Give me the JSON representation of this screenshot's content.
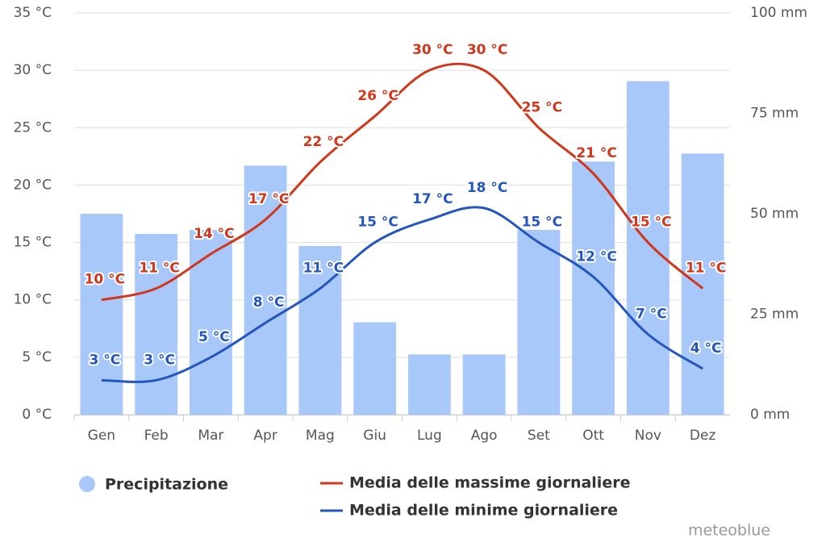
{
  "chart_data": {
    "type": "combo",
    "categories": [
      "Gen",
      "Feb",
      "Mar",
      "Apr",
      "Mag",
      "Giu",
      "Lug",
      "Ago",
      "Set",
      "Ott",
      "Nov",
      "Dez"
    ],
    "series": [
      {
        "name": "Precipitazione",
        "type": "bar",
        "axis": "y2",
        "color": "#a9c8fa",
        "values": [
          50,
          45,
          46,
          62,
          42,
          23,
          15,
          15,
          46,
          63,
          83,
          65
        ]
      },
      {
        "name": "Media delle massime giornaliere",
        "type": "line",
        "color": "#d0361a",
        "values": [
          10,
          11,
          14,
          17,
          22,
          26,
          30,
          30,
          25,
          21,
          15,
          11
        ],
        "value_labels": [
          "10 °C",
          "11 °C",
          "14 °C",
          "17 °C",
          "22 °C",
          "26 °C",
          "30 °C",
          "30 °C",
          "25 °C",
          "21 °C",
          "15 °C",
          "11 °C"
        ]
      },
      {
        "name": "Media delle minime giornaliere",
        "type": "line",
        "color": "#2456bf",
        "values": [
          3,
          3,
          5,
          8,
          11,
          15,
          17,
          18,
          15,
          12,
          7,
          4
        ],
        "value_labels": [
          "3 °C",
          "3 °C",
          "5 °C",
          "8 °C",
          "11 °C",
          "15 °C",
          "17 °C",
          "18 °C",
          "15 °C",
          "12 °C",
          "7 °C",
          "4 °C"
        ]
      }
    ],
    "ylim": [
      0,
      35
    ],
    "yticks": [
      {
        "value": 0,
        "label": "0 °C"
      },
      {
        "value": 5,
        "label": "5 °C"
      },
      {
        "value": 10,
        "label": "10 °C"
      },
      {
        "value": 15,
        "label": "15 °C"
      },
      {
        "value": 20,
        "label": "20 °C"
      },
      {
        "value": 25,
        "label": "25 °C"
      },
      {
        "value": 30,
        "label": "30 °C"
      },
      {
        "value": 35,
        "label": "35 °C"
      }
    ],
    "y2lim": [
      0,
      100
    ],
    "y2ticks": [
      {
        "value": 0,
        "label": "0 mm"
      },
      {
        "value": 25,
        "label": "25 mm"
      },
      {
        "value": 50,
        "label": "50 mm"
      },
      {
        "value": 75,
        "label": "75 mm"
      },
      {
        "value": 100,
        "label": "100 mm"
      }
    ],
    "grid": true,
    "credit": "meteoblue"
  }
}
